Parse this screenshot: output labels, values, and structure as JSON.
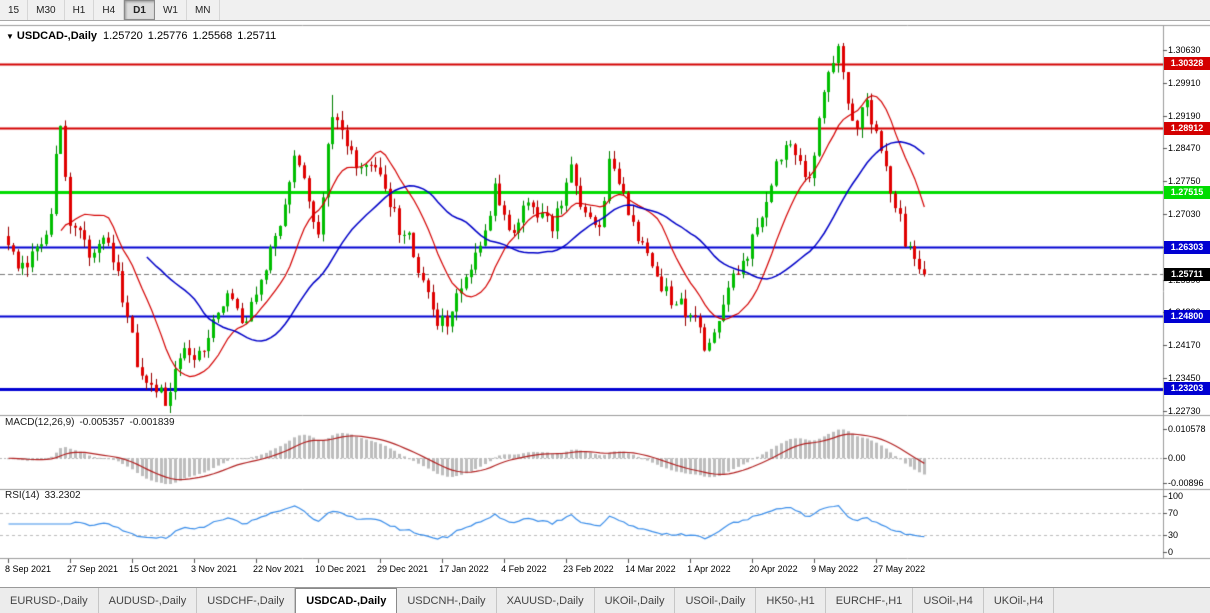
{
  "toolbar": {
    "timeframes": [
      {
        "label": "15",
        "active": false
      },
      {
        "label": "M30",
        "active": false
      },
      {
        "label": "H1",
        "active": false
      },
      {
        "label": "H4",
        "active": false
      },
      {
        "label": "D1",
        "active": true
      },
      {
        "label": "W1",
        "active": false
      },
      {
        "label": "MN",
        "active": false
      }
    ]
  },
  "chart": {
    "symbol": "USDCAD-,Daily",
    "ohlc": {
      "open": "1.25720",
      "high": "1.25776",
      "low": "1.25568",
      "close": "1.25711"
    },
    "price_axis": [
      "1.30630",
      "1.29910",
      "1.29190",
      "1.28470",
      "1.27750",
      "1.27030",
      "1.26310",
      "1.25590",
      "1.24890",
      "1.24170",
      "1.23450",
      "1.22730"
    ],
    "levels": [
      {
        "price": "1.30328",
        "value": 1.30328,
        "color": "#D40000",
        "lw": 2
      },
      {
        "price": "1.28912",
        "value": 1.28912,
        "color": "#D40000",
        "lw": 2
      },
      {
        "price": "1.27515",
        "value": 1.27515,
        "color": "#00DC00",
        "lw": 3
      },
      {
        "price": "1.26303",
        "value": 1.26303,
        "color": "#0000D2",
        "lw": 2
      },
      {
        "price": "1.24800",
        "value": 1.248,
        "color": "#0000D2",
        "lw": 2
      },
      {
        "price": "1.23203",
        "value": 1.23203,
        "color": "#0000D2",
        "lw": 3
      }
    ],
    "current_price": {
      "label": "1.25711",
      "value": 1.25711,
      "color": "#000000"
    },
    "x_labels": [
      {
        "label": "8 Sep 2021",
        "i": 0
      },
      {
        "label": "27 Sep 2021",
        "i": 13
      },
      {
        "label": "15 Oct 2021",
        "i": 26
      },
      {
        "label": "3 Nov 2021",
        "i": 39
      },
      {
        "label": "22 Nov 2021",
        "i": 52
      },
      {
        "label": "10 Dec 2021",
        "i": 65
      },
      {
        "label": "29 Dec 2021",
        "i": 78
      },
      {
        "label": "17 Jan 2022",
        "i": 91
      },
      {
        "label": "4 Feb 2022",
        "i": 104
      },
      {
        "label": "23 Feb 2022",
        "i": 117
      },
      {
        "label": "14 Mar 2022",
        "i": 130
      },
      {
        "label": "1 Apr 2022",
        "i": 143
      },
      {
        "label": "20 Apr 2022",
        "i": 156
      },
      {
        "label": "9 May 2022",
        "i": 169
      },
      {
        "label": "27 May 2022",
        "i": 182
      }
    ]
  },
  "indicators": {
    "macd": {
      "name": "MACD(12,26,9)",
      "value": "-0.005357",
      "signal": "-0.001839",
      "axis": [
        {
          "label": "0.010578",
          "v": 0.010578
        },
        {
          "label": "0.00",
          "v": 0
        },
        {
          "label": "-0.00896",
          "v": -0.00896
        }
      ]
    },
    "rsi": {
      "name": "RSI(14)",
      "value": "33.2302",
      "axis": [
        {
          "label": "100",
          "v": 100
        },
        {
          "label": "70",
          "v": 70
        },
        {
          "label": "30",
          "v": 30
        },
        {
          "label": "0",
          "v": 0
        }
      ],
      "levels": [
        70,
        30
      ]
    }
  },
  "tabs": [
    {
      "label": "EURUSD-,Daily",
      "active": false
    },
    {
      "label": "AUDUSD-,Daily",
      "active": false
    },
    {
      "label": "USDCHF-,Daily",
      "active": false
    },
    {
      "label": "USDCAD-,Daily",
      "active": true
    },
    {
      "label": "USDCNH-,Daily",
      "active": false
    },
    {
      "label": "XAUUSD-,Daily",
      "active": false
    },
    {
      "label": "UKOil-,Daily",
      "active": false
    },
    {
      "label": "USOil-,Daily",
      "active": false
    },
    {
      "label": "HK50-,H1",
      "active": false
    },
    {
      "label": "EURCHF-,H1",
      "active": false
    },
    {
      "label": "USOil-,H4",
      "active": false
    },
    {
      "label": "UKOil-,H4",
      "active": false
    }
  ],
  "colors": {
    "up_fill": "#00BE00",
    "up_wick": "#008000",
    "down_fill": "#E00000",
    "down_wick": "#990000",
    "ma_fast": "#D40000",
    "ma_slow": "#0000C8",
    "macd_hist": "#BDBDBD",
    "macd_signal": "#B22222",
    "rsi_line": "#3B8EEA",
    "separator": "#9a9a9a"
  },
  "chart_data": {
    "type": "candlestick",
    "symbol": "USDCAD",
    "timeframe": "Daily",
    "title": "USDCAD-,Daily 1.25720 1.25776 1.25568 1.25711",
    "bars": 193,
    "price_min": 1.2272,
    "price_max": 1.3115,
    "seed": 20220603,
    "anchors": [
      [
        0,
        1.2635
      ],
      [
        2,
        1.26
      ],
      [
        4,
        1.2575
      ],
      [
        6,
        1.264
      ],
      [
        8,
        1.266
      ],
      [
        9,
        1.27
      ],
      [
        10,
        1.2815
      ],
      [
        11,
        1.288
      ],
      [
        12,
        1.28
      ],
      [
        13,
        1.2695
      ],
      [
        15,
        1.2665
      ],
      [
        17,
        1.26
      ],
      [
        19,
        1.2645
      ],
      [
        21,
        1.2655
      ],
      [
        23,
        1.256
      ],
      [
        25,
        1.248
      ],
      [
        27,
        1.2385
      ],
      [
        29,
        1.235
      ],
      [
        31,
        1.232
      ],
      [
        33,
        1.2295
      ],
      [
        35,
        1.236
      ],
      [
        37,
        1.2395
      ],
      [
        39,
        1.237
      ],
      [
        41,
        1.242
      ],
      [
        43,
        1.2455
      ],
      [
        45,
        1.25
      ],
      [
        47,
        1.252
      ],
      [
        49,
        1.2465
      ],
      [
        51,
        1.251
      ],
      [
        53,
        1.256
      ],
      [
        55,
        1.2625
      ],
      [
        57,
        1.269
      ],
      [
        59,
        1.2775
      ],
      [
        60,
        1.284
      ],
      [
        62,
        1.2795
      ],
      [
        64,
        1.27
      ],
      [
        65,
        1.265
      ],
      [
        66,
        1.2755
      ],
      [
        67,
        1.2855
      ],
      [
        68,
        1.293
      ],
      [
        70,
        1.2885
      ],
      [
        72,
        1.283
      ],
      [
        74,
        1.279
      ],
      [
        76,
        1.2815
      ],
      [
        78,
        1.279
      ],
      [
        80,
        1.273
      ],
      [
        82,
        1.267
      ],
      [
        84,
        1.2645
      ],
      [
        86,
        1.258
      ],
      [
        88,
        1.252
      ],
      [
        90,
        1.2458
      ],
      [
        92,
        1.2475
      ],
      [
        94,
        1.251
      ],
      [
        96,
        1.257
      ],
      [
        98,
        1.262
      ],
      [
        100,
        1.2665
      ],
      [
        102,
        1.2765
      ],
      [
        104,
        1.27
      ],
      [
        106,
        1.2675
      ],
      [
        108,
        1.2705
      ],
      [
        110,
        1.273
      ],
      [
        112,
        1.27
      ],
      [
        114,
        1.268
      ],
      [
        116,
        1.272
      ],
      [
        118,
        1.281
      ],
      [
        120,
        1.272
      ],
      [
        122,
        1.268
      ],
      [
        124,
        1.2665
      ],
      [
        126,
        1.283
      ],
      [
        128,
        1.277
      ],
      [
        130,
        1.27
      ],
      [
        132,
        1.264
      ],
      [
        134,
        1.2605
      ],
      [
        136,
        1.257
      ],
      [
        138,
        1.2535
      ],
      [
        140,
        1.2505
      ],
      [
        142,
        1.2495
      ],
      [
        144,
        1.2465
      ],
      [
        146,
        1.2415
      ],
      [
        148,
        1.245
      ],
      [
        150,
        1.249
      ],
      [
        152,
        1.2555
      ],
      [
        154,
        1.26
      ],
      [
        156,
        1.264
      ],
      [
        158,
        1.2715
      ],
      [
        160,
        1.278
      ],
      [
        162,
        1.283
      ],
      [
        164,
        1.286
      ],
      [
        166,
        1.2815
      ],
      [
        168,
        1.277
      ],
      [
        170,
        1.2905
      ],
      [
        172,
        1.301
      ],
      [
        174,
        1.3055
      ],
      [
        176,
        1.2965
      ],
      [
        178,
        1.289
      ],
      [
        180,
        1.295
      ],
      [
        182,
        1.287
      ],
      [
        184,
        1.2805
      ],
      [
        186,
        1.272
      ],
      [
        188,
        1.265
      ],
      [
        190,
        1.2595
      ],
      [
        192,
        1.25711
      ]
    ],
    "wick_overrides": [
      [
        11,
        "h",
        1.2897
      ],
      [
        33,
        "l",
        1.2288
      ],
      [
        68,
        "h",
        1.2964
      ],
      [
        90,
        "l",
        1.245
      ],
      [
        146,
        "l",
        1.2402
      ],
      [
        174,
        "h",
        1.3076
      ]
    ],
    "last_close": 1.25711,
    "overlays": {
      "ma_fast_period": 12,
      "ma_slow_period": 30
    },
    "macd": {
      "fast": 12,
      "slow": 26,
      "signal": 9,
      "axis_max": 0.0125,
      "axis_min": -0.0105
    },
    "rsi_period": 14,
    "horizontal_levels": [
      1.30328,
      1.28912,
      1.27515,
      1.26303,
      1.248,
      1.23203
    ]
  }
}
